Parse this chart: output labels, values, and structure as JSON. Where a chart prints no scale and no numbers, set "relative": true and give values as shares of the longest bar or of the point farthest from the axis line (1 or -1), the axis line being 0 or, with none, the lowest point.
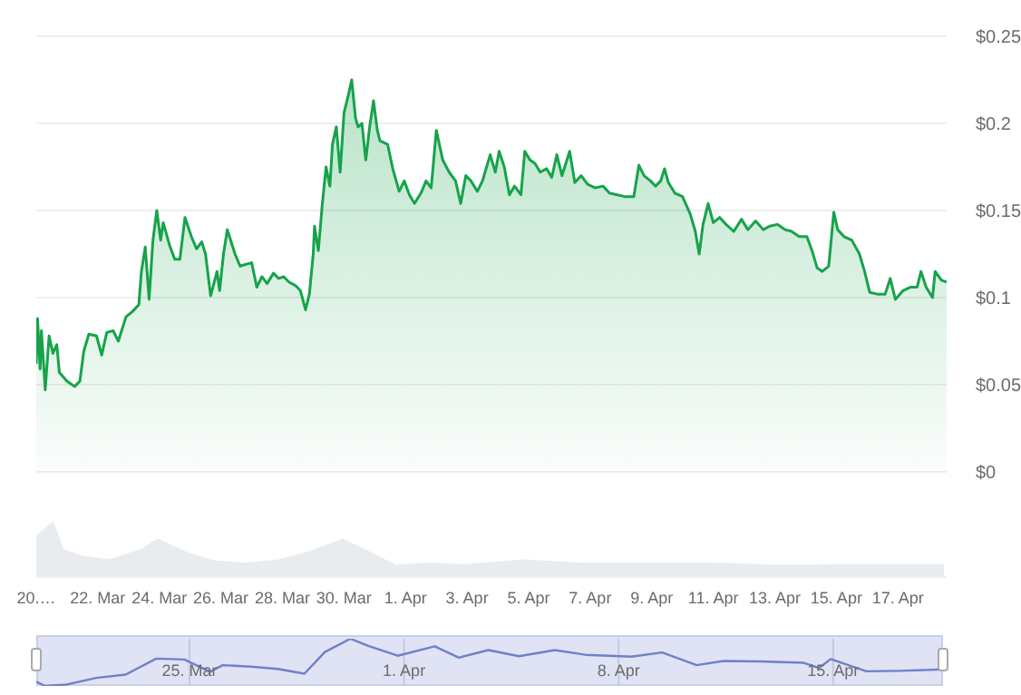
{
  "chart_data": [
    {
      "type": "area",
      "color": "#16a34a",
      "grid": "y",
      "tick_labels": "y",
      "xlim": [
        "--03-20T00:00",
        "--04-18T14:00"
      ],
      "ylim": [
        0,
        0.25
      ],
      "yticks": [
        {
          "value": 0,
          "label": "$0"
        },
        {
          "value": 0.05,
          "label": "$0.05"
        },
        {
          "value": 0.1,
          "label": "$0.1"
        },
        {
          "value": 0.15,
          "label": "$0.15"
        },
        {
          "value": 0.2,
          "label": "$0.2"
        },
        {
          "value": 0.25,
          "label": "$0.25"
        }
      ],
      "x": [
        "--03-20T00:00",
        "--03-20T01:00",
        "--03-20T03:00",
        "--03-20T04:00",
        "--03-20T07:00",
        "--03-20T10:00",
        "--03-20T13:00",
        "--03-20T16:00",
        "--03-20T18:00",
        "--03-21T00:00",
        "--03-21T06:00",
        "--03-21T10:00",
        "--03-21T13:00",
        "--03-21T17:00",
        "--03-21T23:00",
        "--03-22T03:00",
        "--03-22T07:00",
        "--03-22T12:00",
        "--03-22T16:00",
        "--03-22T22:00",
        "--03-23T03:00",
        "--03-23T08:00",
        "--03-23T10:00",
        "--03-23T13:00",
        "--03-23T16:00",
        "--03-23T19:00",
        "--03-23T22:00",
        "--03-24T01:00",
        "--03-24T03:00",
        "--03-24T08:00",
        "--03-24T12:00",
        "--03-24T16:00",
        "--03-24T20:00",
        "--03-25T01:00",
        "--03-25T05:00",
        "--03-25T09:00",
        "--03-25T12:00",
        "--03-25T16:00",
        "--03-25T21:00",
        "--03-25T23:00",
        "--03-26T02:00",
        "--03-26T05:00",
        "--03-26T11:00",
        "--03-26T15:00",
        "--03-26T19:00",
        "--03-27T00:00",
        "--03-27T04:00",
        "--03-27T08:00",
        "--03-27T12:00",
        "--03-27T17:00",
        "--03-27T21:00",
        "--03-28T01:00",
        "--03-28T05:00",
        "--03-28T10:00",
        "--03-28T14:00",
        "--03-28T18:00",
        "--03-28T21:00",
        "--03-29T00:00",
        "--03-29T01:00",
        "--03-29T04:00",
        "--03-29T07:00",
        "--03-29T10:00",
        "--03-29T13:00",
        "--03-29T15:00",
        "--03-29T18:00",
        "--03-29T21:00",
        "--03-30T00:00",
        "--03-30T03:00",
        "--03-30T06:00",
        "--03-30T09:00",
        "--03-30T11:00",
        "--03-30T14:00",
        "--03-30T17:00",
        "--03-30T20:00",
        "--03-30T23:00",
        "--03-31T02:00",
        "--03-31T04:00",
        "--03-31T10:00",
        "--03-31T14:00",
        "--03-31T19:00",
        "--03-31T23:00",
        "--04-01T03:00",
        "--04-01T07:00",
        "--04-01T12:00",
        "--04-01T16:00",
        "--04-01T20:00",
        "--04-02T00:00",
        "--04-02T05:00",
        "--04-02T10:00",
        "--04-02T15:00",
        "--04-02T19:00",
        "--04-02T23:00",
        "--04-03T03:00",
        "--04-03T08:00",
        "--04-03T12:00",
        "--04-03T18:00",
        "--04-03T22:00",
        "--04-04T01:00",
        "--04-04T05:00",
        "--04-04T09:00",
        "--04-04T13:00",
        "--04-04T18:00",
        "--04-04T21:00",
        "--04-05T01:00",
        "--04-05T05:00",
        "--04-05T09:00",
        "--04-05T14:00",
        "--04-05T18:00",
        "--04-05T22:00",
        "--04-06T02:00",
        "--04-06T08:00",
        "--04-06T12:00",
        "--04-06T17:00",
        "--04-06T22:00",
        "--04-07T04:00",
        "--04-07T10:00",
        "--04-07T15:00",
        "--04-07T21:00",
        "--04-08T03:00",
        "--04-08T10:00",
        "--04-08T14:00",
        "--04-08T18:00",
        "--04-08T23:00",
        "--04-09T03:00",
        "--04-09T07:00",
        "--04-09T10:00",
        "--04-09T13:00",
        "--04-09T18:00",
        "--04-10T00:00",
        "--04-10T06:00",
        "--04-10T10:00",
        "--04-10T13:00",
        "--04-10T16:00",
        "--04-10T20:00",
        "--04-11T00:00",
        "--04-11T05:00",
        "--04-11T10:00",
        "--04-11T16:00",
        "--04-11T22:00",
        "--04-12T03:00",
        "--04-12T09:00",
        "--04-12T15:00",
        "--04-12T20:00",
        "--04-13T02:00",
        "--04-13T08:00",
        "--04-13T13:00",
        "--04-13T19:00",
        "--04-14T01:00",
        "--04-14T05:00",
        "--04-14T09:00",
        "--04-14T13:00",
        "--04-14T18:00",
        "--04-14T22:00",
        "--04-15T01:00",
        "--04-15T06:00",
        "--04-15T12:00",
        "--04-15T18:00",
        "--04-15T22:00",
        "--04-16T02:00",
        "--04-16T08:00",
        "--04-16T14:00",
        "--04-16T18:00",
        "--04-16T22:00",
        "--04-17T04:00",
        "--04-17T10:00",
        "--04-17T15:00",
        "--04-17T18:00",
        "--04-17T22:00",
        "--04-18T03:00",
        "--04-18T05:00",
        "--04-18T10:00",
        "--04-18T14:00"
      ],
      "values": [
        0.062,
        0.088,
        0.059,
        0.081,
        0.047,
        0.078,
        0.068,
        0.073,
        0.057,
        0.052,
        0.049,
        0.052,
        0.069,
        0.079,
        0.078,
        0.067,
        0.08,
        0.081,
        0.075,
        0.089,
        0.092,
        0.096,
        0.115,
        0.129,
        0.099,
        0.133,
        0.15,
        0.133,
        0.143,
        0.13,
        0.122,
        0.122,
        0.146,
        0.135,
        0.128,
        0.132,
        0.125,
        0.101,
        0.115,
        0.104,
        0.125,
        0.139,
        0.125,
        0.118,
        0.119,
        0.12,
        0.106,
        0.112,
        0.108,
        0.114,
        0.111,
        0.112,
        0.109,
        0.107,
        0.104,
        0.093,
        0.102,
        0.125,
        0.141,
        0.127,
        0.153,
        0.175,
        0.164,
        0.188,
        0.198,
        0.172,
        0.206,
        0.215,
        0.225,
        0.203,
        0.198,
        0.2,
        0.179,
        0.198,
        0.213,
        0.196,
        0.19,
        0.188,
        0.174,
        0.161,
        0.167,
        0.159,
        0.154,
        0.16,
        0.167,
        0.163,
        0.196,
        0.179,
        0.172,
        0.167,
        0.154,
        0.17,
        0.167,
        0.161,
        0.167,
        0.182,
        0.172,
        0.184,
        0.175,
        0.159,
        0.164,
        0.159,
        0.184,
        0.179,
        0.177,
        0.172,
        0.174,
        0.169,
        0.182,
        0.17,
        0.184,
        0.166,
        0.17,
        0.165,
        0.163,
        0.164,
        0.16,
        0.159,
        0.158,
        0.158,
        0.176,
        0.17,
        0.167,
        0.164,
        0.167,
        0.174,
        0.166,
        0.16,
        0.158,
        0.148,
        0.138,
        0.125,
        0.142,
        0.154,
        0.143,
        0.146,
        0.142,
        0.138,
        0.145,
        0.139,
        0.144,
        0.139,
        0.141,
        0.142,
        0.139,
        0.138,
        0.135,
        0.135,
        0.127,
        0.117,
        0.115,
        0.118,
        0.149,
        0.139,
        0.135,
        0.133,
        0.125,
        0.115,
        0.103,
        0.102,
        0.102,
        0.111,
        0.099,
        0.104,
        0.106,
        0.106,
        0.115,
        0.106,
        0.1,
        0.115,
        0.11,
        0.109
      ]
    },
    {
      "type": "area",
      "color": "#e9ecef",
      "relative": true,
      "tick_labels": "x",
      "xlim": [
        "--03-20T00:00",
        "--04-18T14:00"
      ],
      "xticks": [
        {
          "value": "--03-20",
          "label": "20.…"
        },
        {
          "value": "--03-22",
          "label": "22. Mar"
        },
        {
          "value": "--03-24",
          "label": "24. Mar"
        },
        {
          "value": "--03-26",
          "label": "26. Mar"
        },
        {
          "value": "--03-28",
          "label": "28. Mar"
        },
        {
          "value": "--03-30",
          "label": "30. Mar"
        },
        {
          "value": "--04-01",
          "label": "1. Apr"
        },
        {
          "value": "--04-03",
          "label": "3. Apr"
        },
        {
          "value": "--04-05",
          "label": "5. Apr"
        },
        {
          "value": "--04-07",
          "label": "7. Apr"
        },
        {
          "value": "--04-09",
          "label": "9. Apr"
        },
        {
          "value": "--04-11",
          "label": "11. Apr"
        },
        {
          "value": "--04-13",
          "label": "13. Apr"
        },
        {
          "value": "--04-15",
          "label": "15. Apr"
        },
        {
          "value": "--04-17",
          "label": "17. Apr"
        }
      ],
      "x": [
        "--03-20T00:00",
        "--03-20T13:00",
        "--03-20T21:00",
        "--03-21T11:00",
        "--03-22T09:00",
        "--03-23T10:00",
        "--03-23T23:00",
        "--03-24T22:00",
        "--03-25T18:00",
        "--03-26T19:00",
        "--03-27T21:00",
        "--03-28T21:00",
        "--03-29T23:00",
        "--03-30T21:00",
        "--03-31T16:00",
        "--04-01T17:00",
        "--04-02T22:00",
        "--04-04T20:00",
        "--04-06T18:00",
        "--04-08T21:00",
        "--04-11T00:00",
        "--04-13T03:00",
        "--04-15T05:00",
        "--04-17T08:00",
        "--04-18T12:00"
      ],
      "values": [
        0.75,
        1,
        0.5,
        0.38,
        0.31,
        0.5,
        0.69,
        0.44,
        0.29,
        0.25,
        0.31,
        0.46,
        0.69,
        0.44,
        0.21,
        0.25,
        0.22,
        0.31,
        0.25,
        0.25,
        0.25,
        0.21,
        0.22,
        0.22,
        0.22
      ]
    },
    {
      "type": "line",
      "color": "#7080c8",
      "relative": true,
      "tick_labels": "x",
      "grid": "x",
      "xlim": [
        "--03-20T00:00",
        "--04-18T14:00"
      ],
      "xticks": [
        {
          "value": "--03-25",
          "label": "25. Mar"
        },
        {
          "value": "--04-01",
          "label": "1. Apr"
        },
        {
          "value": "--04-08",
          "label": "8. Apr"
        },
        {
          "value": "--04-15",
          "label": "15. Apr"
        }
      ],
      "x": [
        "--03-20T00:00",
        "--03-20T07:00",
        "--03-21T00:00",
        "--03-21T23:00",
        "--03-22T22:00",
        "--03-23T22:00",
        "--03-24T20:00",
        "--03-25T16:00",
        "--03-26T02:00",
        "--03-27T00:00",
        "--03-27T21:00",
        "--03-28T18:00",
        "--03-29T10:00",
        "--03-30T06:00",
        "--03-30T20:00",
        "--03-31T19:00",
        "--04-02T00:00",
        "--04-02T19:00",
        "--04-03T18:00",
        "--04-04T18:00",
        "--04-05T22:00",
        "--04-06T22:00",
        "--04-08T10:00",
        "--04-09T10:00",
        "--04-10T13:00",
        "--04-11T10:00",
        "--04-12T15:00",
        "--04-14T01:00",
        "--04-14T13:00",
        "--04-14T22:00",
        "--04-16T02:00",
        "--04-17T04:00",
        "--04-18T14:00"
      ],
      "values": [
        0.09,
        0,
        0.03,
        0.17,
        0.24,
        0.58,
        0.56,
        0.3,
        0.44,
        0.41,
        0.36,
        0.26,
        0.72,
        1,
        0.85,
        0.64,
        0.84,
        0.6,
        0.76,
        0.63,
        0.76,
        0.66,
        0.62,
        0.71,
        0.44,
        0.53,
        0.52,
        0.49,
        0.38,
        0.57,
        0.31,
        0.32,
        0.35
      ]
    }
  ]
}
